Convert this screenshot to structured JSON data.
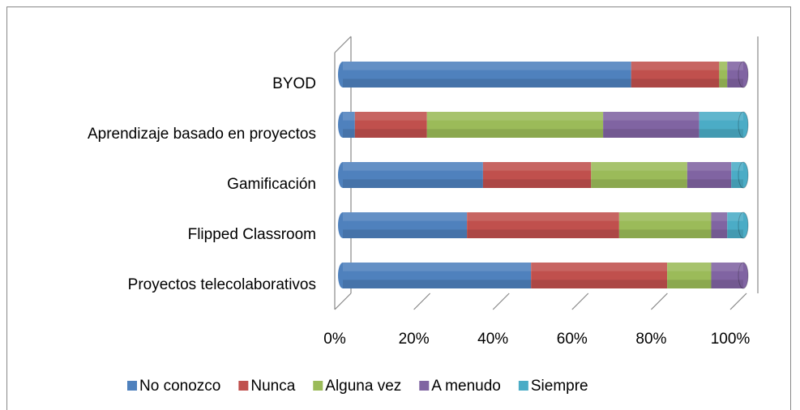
{
  "chart_data": {
    "type": "bar",
    "stacked_percent": true,
    "categories": [
      "BYOD",
      "Aprendizaje basado en proyectos",
      "Gamificación",
      "Flipped Classroom",
      "Proyectos telecolaborativos"
    ],
    "series": [
      {
        "name": "No conozco",
        "color": "#4f81bd",
        "values": [
          72,
          3,
          35,
          31,
          47
        ]
      },
      {
        "name": "Nunca",
        "color": "#c0504d",
        "values": [
          22,
          18,
          27,
          38,
          34
        ]
      },
      {
        "name": "Alguna vez",
        "color": "#9bbb59",
        "values": [
          2,
          44,
          24,
          23,
          11
        ]
      },
      {
        "name": "A menudo",
        "color": "#8064a2",
        "values": [
          4,
          24,
          11,
          4,
          8
        ]
      },
      {
        "name": "Siempre",
        "color": "#4bacc6",
        "values": [
          0,
          11,
          3,
          4,
          0
        ]
      }
    ],
    "xlim": [
      0,
      100
    ],
    "xticks": [
      {
        "value": 0,
        "label": "0%"
      },
      {
        "value": 20,
        "label": "20%"
      },
      {
        "value": 40,
        "label": "40%"
      },
      {
        "value": 60,
        "label": "60%"
      },
      {
        "value": 80,
        "label": "80%"
      },
      {
        "value": 100,
        "label": "100%"
      }
    ],
    "legend": "bottom"
  }
}
